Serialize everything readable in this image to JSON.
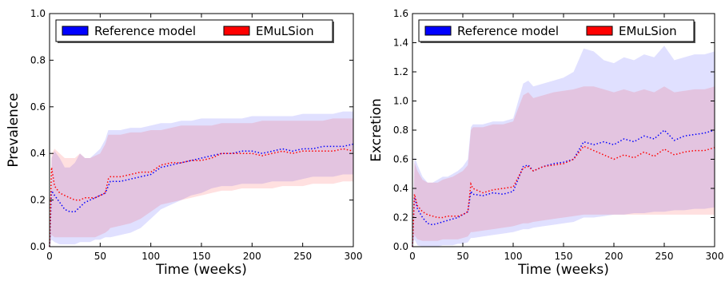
{
  "chart_data": [
    {
      "type": "line",
      "xlabel": "Time (weeks)",
      "ylabel": "Prevalence",
      "xlim": [
        0,
        300
      ],
      "ylim": [
        0,
        1.0
      ],
      "xticks": [
        "0",
        "50",
        "100",
        "150",
        "200",
        "250",
        "300"
      ],
      "yticks": [
        "0.0",
        "0.2",
        "0.4",
        "0.6",
        "0.8",
        "1.0"
      ],
      "legend": {
        "placement": "top",
        "entries": [
          "Reference model",
          "EMuLSion"
        ]
      },
      "series": [
        {
          "name": "Reference model",
          "color": "#0000ff",
          "x": [
            0,
            2,
            5,
            10,
            15,
            20,
            25,
            30,
            35,
            40,
            45,
            50,
            55,
            58,
            60,
            70,
            80,
            90,
            100,
            110,
            120,
            130,
            140,
            150,
            160,
            170,
            180,
            190,
            200,
            210,
            220,
            230,
            240,
            250,
            260,
            270,
            280,
            290,
            300
          ],
          "y": [
            0.0,
            0.24,
            0.22,
            0.19,
            0.16,
            0.15,
            0.15,
            0.17,
            0.19,
            0.2,
            0.21,
            0.22,
            0.23,
            0.26,
            0.28,
            0.28,
            0.29,
            0.3,
            0.31,
            0.34,
            0.35,
            0.36,
            0.37,
            0.38,
            0.39,
            0.4,
            0.4,
            0.41,
            0.41,
            0.4,
            0.41,
            0.42,
            0.41,
            0.42,
            0.42,
            0.43,
            0.43,
            0.43,
            0.44
          ],
          "band_low": [
            0.0,
            0.03,
            0.02,
            0.01,
            0.01,
            0.01,
            0.01,
            0.02,
            0.02,
            0.02,
            0.03,
            0.03,
            0.04,
            0.04,
            0.04,
            0.05,
            0.06,
            0.08,
            0.12,
            0.16,
            0.18,
            0.2,
            0.22,
            0.23,
            0.25,
            0.26,
            0.26,
            0.27,
            0.27,
            0.27,
            0.28,
            0.28,
            0.28,
            0.29,
            0.3,
            0.3,
            0.3,
            0.31,
            0.31
          ],
          "band_high": [
            0.0,
            0.38,
            0.41,
            0.38,
            0.34,
            0.34,
            0.36,
            0.4,
            0.38,
            0.38,
            0.4,
            0.42,
            0.46,
            0.5,
            0.5,
            0.5,
            0.51,
            0.51,
            0.52,
            0.53,
            0.53,
            0.54,
            0.54,
            0.55,
            0.55,
            0.55,
            0.55,
            0.55,
            0.56,
            0.56,
            0.56,
            0.56,
            0.56,
            0.57,
            0.57,
            0.57,
            0.57,
            0.58,
            0.58
          ]
        },
        {
          "name": "EMuLSion",
          "color": "#ff0000",
          "x": [
            0,
            2,
            5,
            10,
            15,
            20,
            25,
            30,
            35,
            40,
            45,
            50,
            55,
            58,
            60,
            70,
            80,
            90,
            100,
            110,
            120,
            130,
            140,
            150,
            160,
            170,
            180,
            190,
            200,
            210,
            220,
            230,
            240,
            250,
            260,
            270,
            280,
            290,
            300
          ],
          "y": [
            0.0,
            0.34,
            0.26,
            0.23,
            0.22,
            0.21,
            0.2,
            0.2,
            0.21,
            0.21,
            0.21,
            0.22,
            0.23,
            0.29,
            0.3,
            0.3,
            0.31,
            0.32,
            0.32,
            0.35,
            0.36,
            0.36,
            0.37,
            0.37,
            0.38,
            0.4,
            0.4,
            0.4,
            0.4,
            0.39,
            0.4,
            0.41,
            0.4,
            0.41,
            0.41,
            0.41,
            0.41,
            0.42,
            0.41
          ],
          "band_low": [
            0.0,
            0.05,
            0.04,
            0.04,
            0.04,
            0.04,
            0.04,
            0.04,
            0.04,
            0.04,
            0.04,
            0.05,
            0.06,
            0.07,
            0.08,
            0.09,
            0.1,
            0.12,
            0.15,
            0.18,
            0.19,
            0.2,
            0.21,
            0.22,
            0.23,
            0.24,
            0.24,
            0.25,
            0.25,
            0.25,
            0.25,
            0.26,
            0.26,
            0.26,
            0.27,
            0.27,
            0.27,
            0.28,
            0.28
          ],
          "band_high": [
            0.0,
            0.4,
            0.42,
            0.4,
            0.38,
            0.38,
            0.38,
            0.4,
            0.38,
            0.38,
            0.39,
            0.4,
            0.44,
            0.48,
            0.48,
            0.48,
            0.49,
            0.49,
            0.5,
            0.5,
            0.51,
            0.52,
            0.52,
            0.52,
            0.52,
            0.53,
            0.53,
            0.53,
            0.53,
            0.54,
            0.54,
            0.54,
            0.54,
            0.54,
            0.54,
            0.54,
            0.55,
            0.55,
            0.55
          ]
        }
      ]
    },
    {
      "type": "line",
      "xlabel": "Time (weeks)",
      "ylabel": "Excretion",
      "xlim": [
        0,
        300
      ],
      "ylim": [
        0,
        1.6
      ],
      "xticks": [
        "0",
        "50",
        "100",
        "150",
        "200",
        "250",
        "300"
      ],
      "yticks": [
        "0.0",
        "0.2",
        "0.4",
        "0.6",
        "0.8",
        "1.0",
        "1.2",
        "1.4",
        "1.6"
      ],
      "legend": {
        "placement": "top",
        "entries": [
          "Reference model",
          "EMuLSion"
        ]
      },
      "series": [
        {
          "name": "Reference model",
          "color": "#0000ff",
          "x": [
            0,
            2,
            5,
            10,
            15,
            20,
            25,
            30,
            35,
            40,
            45,
            50,
            55,
            58,
            60,
            70,
            80,
            90,
            100,
            110,
            115,
            120,
            130,
            140,
            150,
            160,
            170,
            180,
            190,
            200,
            210,
            220,
            230,
            240,
            250,
            260,
            270,
            280,
            290,
            300
          ],
          "y": [
            0.0,
            0.34,
            0.26,
            0.2,
            0.16,
            0.15,
            0.16,
            0.17,
            0.18,
            0.19,
            0.2,
            0.22,
            0.24,
            0.38,
            0.36,
            0.35,
            0.37,
            0.36,
            0.38,
            0.55,
            0.56,
            0.52,
            0.55,
            0.57,
            0.58,
            0.6,
            0.72,
            0.7,
            0.72,
            0.7,
            0.74,
            0.72,
            0.76,
            0.74,
            0.8,
            0.73,
            0.76,
            0.77,
            0.78,
            0.8
          ],
          "band_low": [
            0.0,
            0.05,
            0.01,
            0.0,
            0.0,
            0.0,
            0.0,
            0.01,
            0.01,
            0.01,
            0.02,
            0.02,
            0.03,
            0.06,
            0.06,
            0.07,
            0.08,
            0.09,
            0.1,
            0.12,
            0.12,
            0.13,
            0.14,
            0.15,
            0.16,
            0.17,
            0.2,
            0.2,
            0.21,
            0.22,
            0.22,
            0.23,
            0.23,
            0.24,
            0.24,
            0.25,
            0.25,
            0.26,
            0.26,
            0.27
          ],
          "band_high": [
            0.0,
            0.62,
            0.56,
            0.48,
            0.44,
            0.44,
            0.46,
            0.48,
            0.48,
            0.5,
            0.52,
            0.55,
            0.6,
            0.82,
            0.84,
            0.84,
            0.86,
            0.86,
            0.88,
            1.12,
            1.14,
            1.1,
            1.12,
            1.14,
            1.16,
            1.2,
            1.36,
            1.34,
            1.28,
            1.26,
            1.3,
            1.28,
            1.32,
            1.3,
            1.38,
            1.28,
            1.3,
            1.32,
            1.32,
            1.34
          ]
        },
        {
          "name": "EMuLSion",
          "color": "#ff0000",
          "x": [
            0,
            2,
            5,
            10,
            15,
            20,
            25,
            30,
            35,
            40,
            45,
            50,
            55,
            58,
            60,
            70,
            80,
            90,
            100,
            110,
            115,
            120,
            130,
            140,
            150,
            160,
            170,
            180,
            190,
            200,
            210,
            220,
            230,
            240,
            250,
            260,
            270,
            280,
            290,
            300
          ],
          "y": [
            0.0,
            0.36,
            0.28,
            0.24,
            0.22,
            0.21,
            0.2,
            0.2,
            0.21,
            0.21,
            0.21,
            0.22,
            0.24,
            0.43,
            0.4,
            0.37,
            0.39,
            0.4,
            0.41,
            0.54,
            0.55,
            0.52,
            0.55,
            0.56,
            0.57,
            0.6,
            0.69,
            0.66,
            0.63,
            0.6,
            0.63,
            0.61,
            0.65,
            0.62,
            0.67,
            0.63,
            0.65,
            0.66,
            0.66,
            0.68
          ],
          "band_low": [
            0.0,
            0.08,
            0.05,
            0.04,
            0.04,
            0.04,
            0.04,
            0.05,
            0.05,
            0.05,
            0.05,
            0.06,
            0.07,
            0.1,
            0.1,
            0.11,
            0.12,
            0.13,
            0.14,
            0.16,
            0.16,
            0.17,
            0.18,
            0.19,
            0.2,
            0.21,
            0.22,
            0.22,
            0.22,
            0.22,
            0.22,
            0.22,
            0.22,
            0.22,
            0.22,
            0.22,
            0.22,
            0.22,
            0.22,
            0.22
          ],
          "band_high": [
            0.0,
            0.58,
            0.52,
            0.46,
            0.44,
            0.44,
            0.44,
            0.46,
            0.47,
            0.48,
            0.5,
            0.52,
            0.56,
            0.8,
            0.82,
            0.82,
            0.84,
            0.84,
            0.86,
            1.04,
            1.06,
            1.02,
            1.04,
            1.06,
            1.07,
            1.08,
            1.1,
            1.1,
            1.08,
            1.06,
            1.08,
            1.06,
            1.08,
            1.06,
            1.1,
            1.06,
            1.07,
            1.08,
            1.08,
            1.1
          ]
        }
      ]
    }
  ]
}
